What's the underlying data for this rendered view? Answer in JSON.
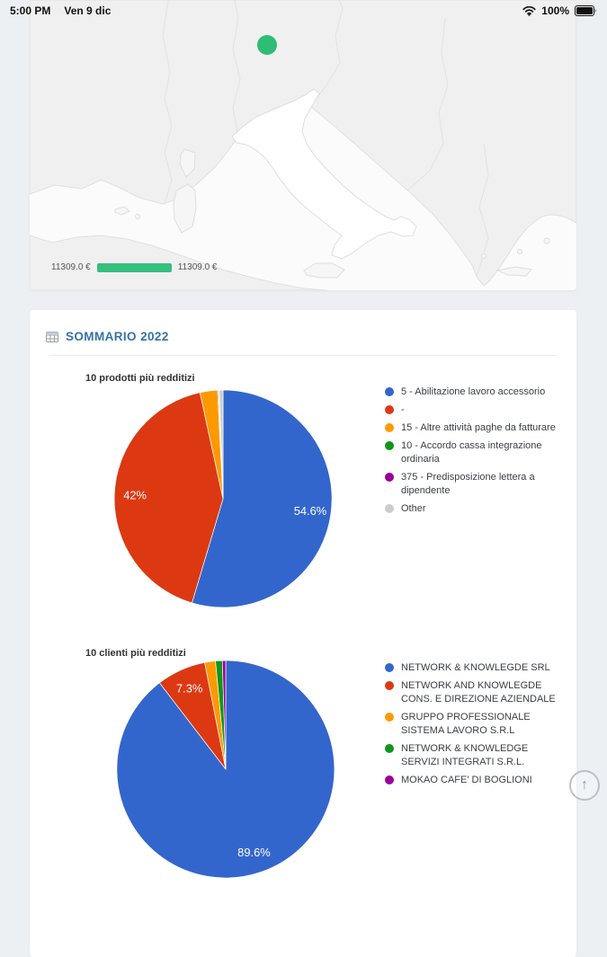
{
  "status_bar": {
    "time": "5:00 PM",
    "date": "Ven 9 dic",
    "battery_percent": "100%",
    "wifi_icon": "wifi-icon",
    "battery_icon": "battery-icon"
  },
  "map_card": {
    "marker_color": "#2dbd74",
    "legend": {
      "left_label": "11309.0 €",
      "right_label": "11309.0 €",
      "bar_color": "#35c07d"
    }
  },
  "summary_card": {
    "icon": "table-icon",
    "title": "SOMMARIO 2022",
    "title_color": "#3274a8"
  },
  "chart_data": [
    {
      "type": "pie",
      "title": "10 prodotti più redditizi",
      "legend_position": "right",
      "slices": [
        {
          "label": "5 - Abilitazione lavoro accessorio",
          "value": 54.6,
          "color": "#3366cc",
          "slice_label": "54.6%"
        },
        {
          "label": "-",
          "value": 42,
          "color": "#dc3912",
          "slice_label": "42%"
        },
        {
          "label": "15 - Altre attività paghe da fatturare",
          "value": 2.6,
          "color": "#ff9900"
        },
        {
          "label": "10 - Accordo cassa integrazione ordinaria",
          "value": 0.15,
          "color": "#109618"
        },
        {
          "label": "375 - Predisposizione lettera a dipendente",
          "value": 0.1,
          "color": "#990099"
        },
        {
          "label": "Other",
          "value": 0.55,
          "color": "#cccccc"
        }
      ]
    },
    {
      "type": "pie",
      "title": "10 clienti più redditizi",
      "legend_position": "right",
      "slices": [
        {
          "label": "NETWORK & KNOWLEGDE SRL",
          "value": 89.6,
          "color": "#3366cc",
          "slice_label": "89.6%"
        },
        {
          "label": "NETWORK AND KNOWLEGDE CONS. E DIREZIONE AZIENDALE",
          "value": 7.3,
          "color": "#dc3912",
          "slice_label": "7.3%"
        },
        {
          "label": "GRUPPO PROFESSIONALE SISTEMA LAVORO S.R.L",
          "value": 1.6,
          "color": "#ff9900"
        },
        {
          "label": "NETWORK & KNOWLEDGE SERVIZI INTEGRATI S.R.L.",
          "value": 1.0,
          "color": "#109618"
        },
        {
          "label": "MOKAO CAFE' DI BOGLIONI",
          "value": 0.5,
          "color": "#990099"
        }
      ]
    }
  ],
  "scroll_top_button": {
    "icon": "↑"
  }
}
